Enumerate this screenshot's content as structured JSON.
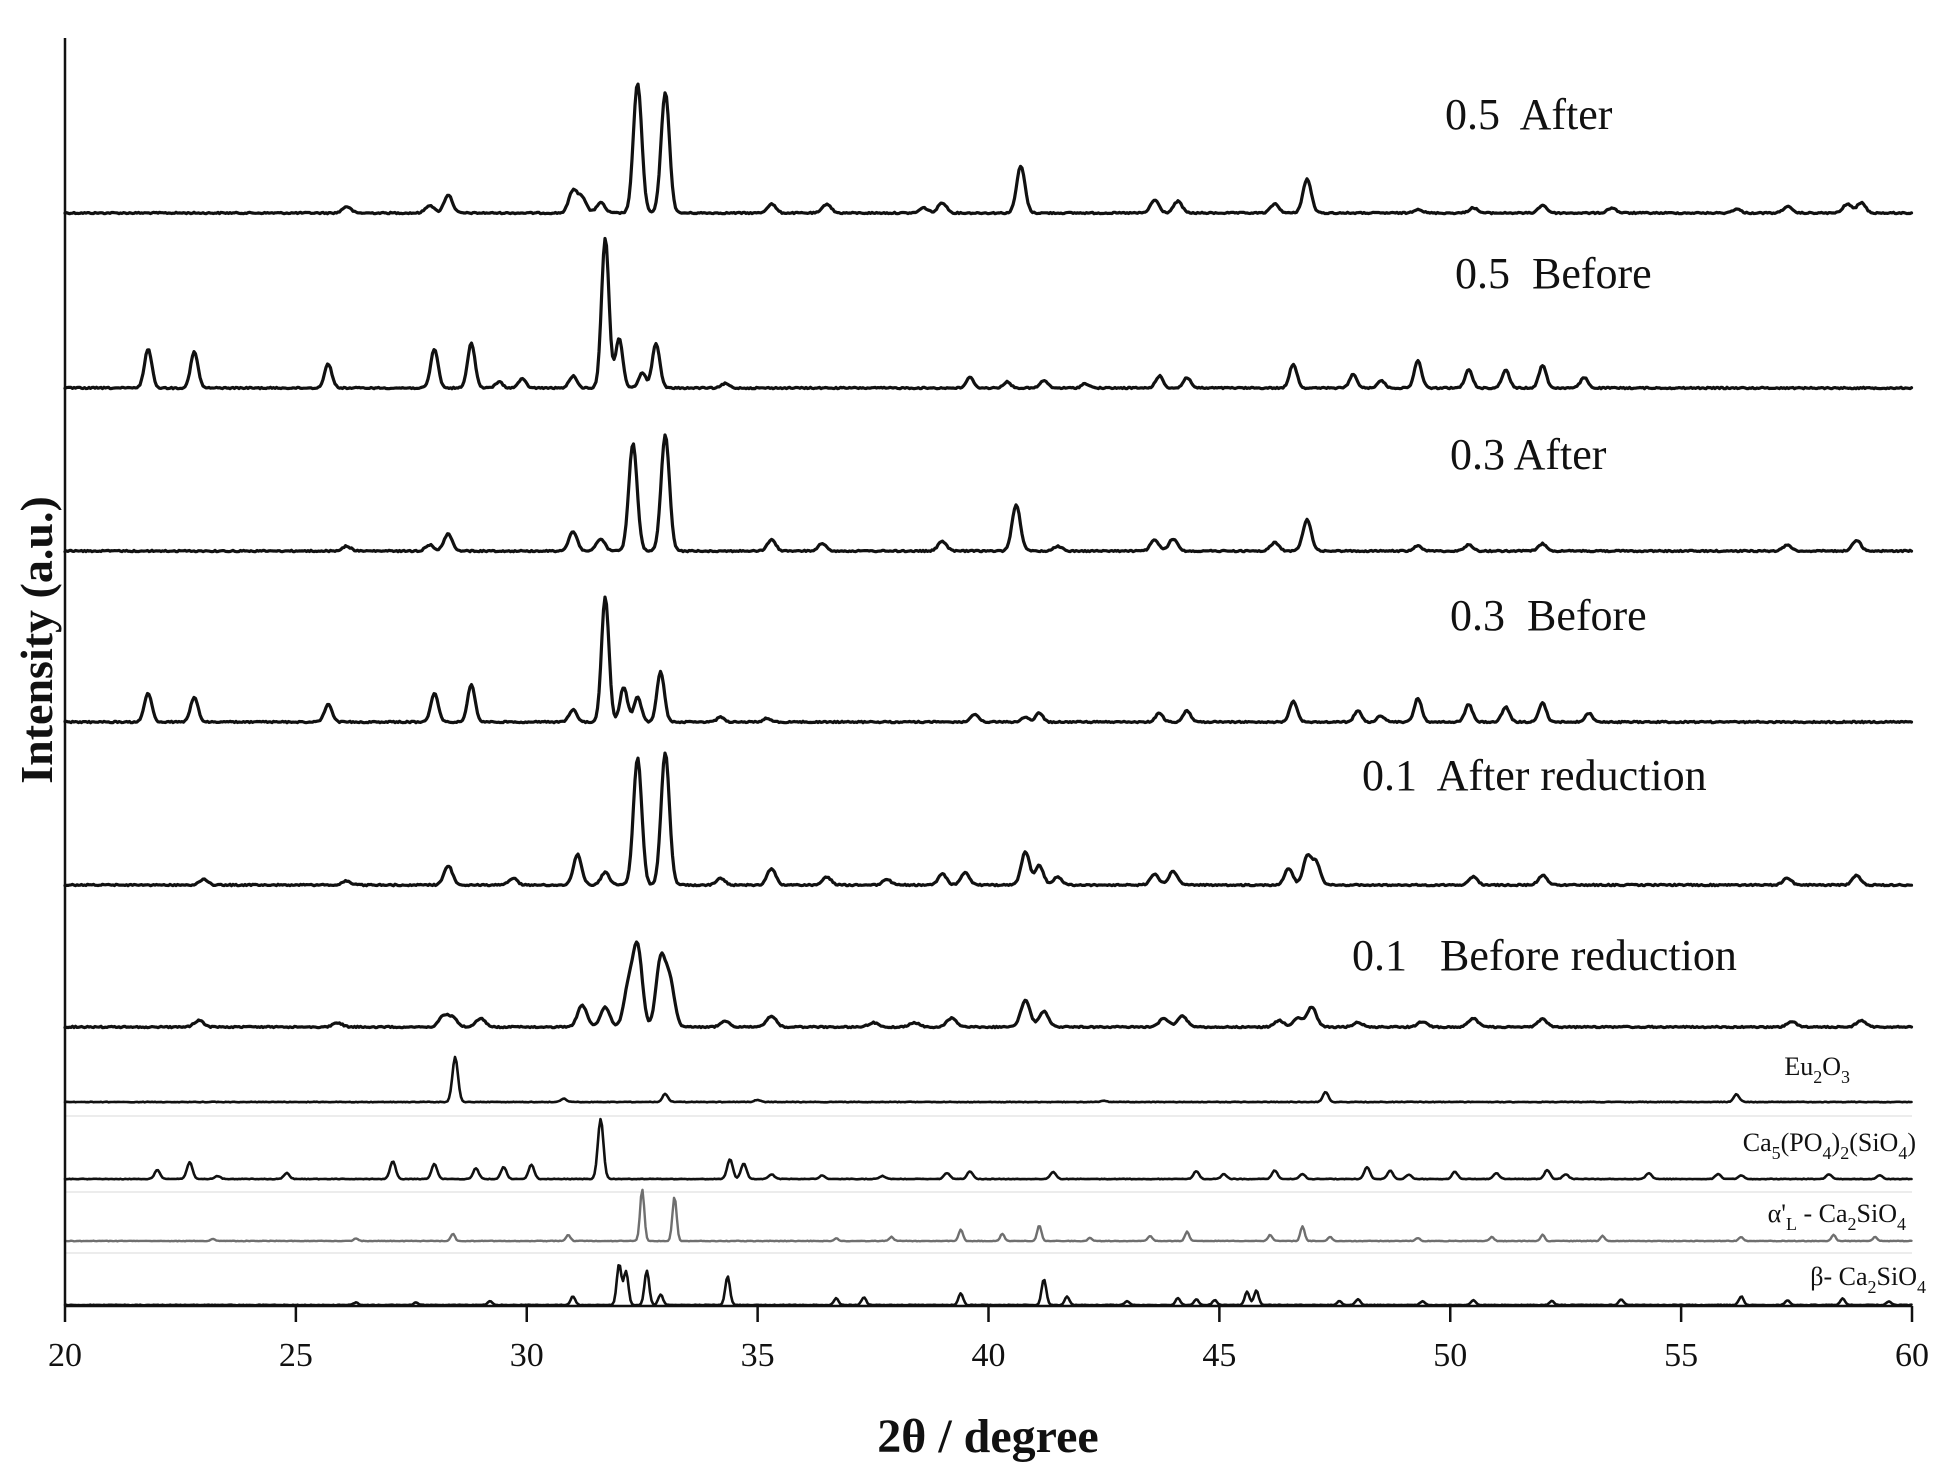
{
  "chart_data": {
    "type": "line",
    "xlabel": "2θ / degree",
    "ylabel": "Intensity (a.u.)",
    "xlim": [
      20,
      60
    ],
    "xticks": [
      "20",
      "25",
      "30",
      "35",
      "40",
      "45",
      "50",
      "55",
      "60"
    ],
    "series": [
      {
        "name": "0.5  After",
        "peaks": [
          [
            32.4,
            100
          ],
          [
            33.0,
            93
          ],
          [
            40.7,
            36
          ],
          [
            46.9,
            26
          ],
          [
            31.0,
            17
          ],
          [
            31.2,
            12
          ],
          [
            28.3,
            14
          ],
          [
            31.6,
            8
          ],
          [
            27.9,
            6
          ],
          [
            26.1,
            5
          ],
          [
            35.3,
            7
          ],
          [
            36.5,
            7
          ],
          [
            39.0,
            8
          ],
          [
            38.6,
            4
          ],
          [
            43.6,
            10
          ],
          [
            44.1,
            9
          ],
          [
            46.2,
            7
          ],
          [
            49.3,
            3
          ],
          [
            50.5,
            4
          ],
          [
            52.0,
            6
          ],
          [
            53.5,
            4
          ],
          [
            57.3,
            5
          ],
          [
            58.6,
            7
          ],
          [
            58.9,
            8
          ],
          [
            56.2,
            3
          ]
        ]
      },
      {
        "name": "0.5  Before",
        "peaks": [
          [
            31.7,
            100
          ],
          [
            32.0,
            33
          ],
          [
            32.8,
            30
          ],
          [
            32.5,
            10
          ],
          [
            21.8,
            26
          ],
          [
            22.8,
            24
          ],
          [
            25.7,
            16
          ],
          [
            28.0,
            26
          ],
          [
            28.8,
            30
          ],
          [
            29.9,
            6
          ],
          [
            31.0,
            8
          ],
          [
            29.4,
            4
          ],
          [
            34.3,
            3
          ],
          [
            39.6,
            7
          ],
          [
            41.2,
            5
          ],
          [
            43.7,
            8
          ],
          [
            44.3,
            7
          ],
          [
            46.6,
            16
          ],
          [
            47.9,
            9
          ],
          [
            48.5,
            5
          ],
          [
            49.3,
            18
          ],
          [
            50.4,
            12
          ],
          [
            51.2,
            12
          ],
          [
            52.0,
            15
          ],
          [
            52.9,
            7
          ],
          [
            40.4,
            4
          ],
          [
            42.1,
            3
          ]
        ]
      },
      {
        "name": "0.3 After",
        "peaks": [
          [
            32.3,
            88
          ],
          [
            33.0,
            95
          ],
          [
            40.6,
            38
          ],
          [
            46.9,
            26
          ],
          [
            31.0,
            16
          ],
          [
            28.3,
            14
          ],
          [
            31.6,
            10
          ],
          [
            35.3,
            9
          ],
          [
            36.4,
            6
          ],
          [
            39.0,
            8
          ],
          [
            43.6,
            9
          ],
          [
            44.0,
            10
          ],
          [
            46.2,
            7
          ],
          [
            49.3,
            4
          ],
          [
            50.4,
            5
          ],
          [
            52.0,
            6
          ],
          [
            57.3,
            5
          ],
          [
            58.8,
            9
          ],
          [
            26.1,
            4
          ],
          [
            27.9,
            5
          ],
          [
            41.5,
            4
          ]
        ]
      },
      {
        "name": "0.3  Before",
        "peaks": [
          [
            31.7,
            100
          ],
          [
            32.1,
            28
          ],
          [
            32.4,
            20
          ],
          [
            32.9,
            40
          ],
          [
            21.8,
            23
          ],
          [
            22.8,
            20
          ],
          [
            25.7,
            14
          ],
          [
            28.0,
            23
          ],
          [
            28.8,
            30
          ],
          [
            31.0,
            10
          ],
          [
            34.2,
            4
          ],
          [
            39.7,
            6
          ],
          [
            41.1,
            7
          ],
          [
            43.7,
            7
          ],
          [
            44.3,
            9
          ],
          [
            46.6,
            17
          ],
          [
            48.0,
            9
          ],
          [
            48.5,
            5
          ],
          [
            49.3,
            19
          ],
          [
            50.4,
            14
          ],
          [
            51.2,
            12
          ],
          [
            52.0,
            15
          ],
          [
            53.0,
            7
          ],
          [
            40.8,
            4
          ],
          [
            35.2,
            3
          ]
        ]
      },
      {
        "name": "0.1  After reduction",
        "peaks": [
          [
            32.4,
            92
          ],
          [
            33.0,
            96
          ],
          [
            31.1,
            22
          ],
          [
            40.8,
            24
          ],
          [
            41.1,
            14
          ],
          [
            46.9,
            20
          ],
          [
            47.1,
            16
          ],
          [
            28.3,
            14
          ],
          [
            31.7,
            9
          ],
          [
            35.3,
            12
          ],
          [
            36.5,
            6
          ],
          [
            39.0,
            8
          ],
          [
            39.5,
            9
          ],
          [
            41.5,
            6
          ],
          [
            43.6,
            8
          ],
          [
            44.0,
            10
          ],
          [
            46.5,
            12
          ],
          [
            50.5,
            6
          ],
          [
            52.0,
            7
          ],
          [
            57.3,
            5
          ],
          [
            58.8,
            7
          ],
          [
            23.0,
            4
          ],
          [
            26.1,
            3
          ],
          [
            29.7,
            5
          ],
          [
            34.2,
            5
          ],
          [
            37.8,
            4
          ]
        ]
      },
      {
        "name": "0.1   Before reduction",
        "peaks": [
          [
            32.4,
            72
          ],
          [
            32.2,
            35
          ],
          [
            32.9,
            60
          ],
          [
            33.1,
            40
          ],
          [
            31.2,
            20
          ],
          [
            31.7,
            18
          ],
          [
            40.8,
            24
          ],
          [
            41.2,
            14
          ],
          [
            47.0,
            18
          ],
          [
            28.2,
            10
          ],
          [
            28.4,
            8
          ],
          [
            29.0,
            8
          ],
          [
            35.3,
            10
          ],
          [
            39.2,
            8
          ],
          [
            43.8,
            8
          ],
          [
            44.2,
            10
          ],
          [
            46.3,
            6
          ],
          [
            49.4,
            5
          ],
          [
            50.5,
            8
          ],
          [
            52.0,
            7
          ],
          [
            57.4,
            5
          ],
          [
            58.9,
            6
          ],
          [
            22.9,
            6
          ],
          [
            25.9,
            4
          ],
          [
            34.3,
            5
          ],
          [
            37.5,
            4
          ],
          [
            38.4,
            4
          ],
          [
            46.7,
            8
          ],
          [
            48.0,
            4
          ]
        ]
      },
      {
        "name": "Eu2O3",
        "label_main": "Eu",
        "label_sub1": "2",
        "label_mid": "O",
        "label_sub2": "3",
        "peaks": [
          [
            28.45,
            100
          ],
          [
            47.3,
            22
          ],
          [
            56.2,
            17
          ],
          [
            33.0,
            18
          ],
          [
            30.8,
            8
          ],
          [
            35.0,
            5
          ],
          [
            42.5,
            3
          ]
        ]
      },
      {
        "name": "Ca5(PO4)2(SiO4)",
        "label_main": "Ca",
        "label_sub1": "5",
        "label_mid": "(PO",
        "label_sub2": "4",
        "label_mid2": ")",
        "label_sub3": "2",
        "label_mid3": "(SiO",
        "label_sub4": "4",
        "label_end": ")",
        "peaks": [
          [
            31.6,
            100
          ],
          [
            22.0,
            15
          ],
          [
            22.7,
            28
          ],
          [
            23.3,
            5
          ],
          [
            24.8,
            10
          ],
          [
            27.1,
            30
          ],
          [
            28.0,
            25
          ],
          [
            28.9,
            18
          ],
          [
            29.5,
            20
          ],
          [
            30.1,
            24
          ],
          [
            34.4,
            33
          ],
          [
            34.7,
            26
          ],
          [
            35.3,
            8
          ],
          [
            36.4,
            6
          ],
          [
            37.7,
            5
          ],
          [
            39.1,
            10
          ],
          [
            39.6,
            13
          ],
          [
            41.4,
            12
          ],
          [
            44.5,
            13
          ],
          [
            45.1,
            8
          ],
          [
            46.2,
            14
          ],
          [
            46.8,
            8
          ],
          [
            48.2,
            20
          ],
          [
            48.7,
            14
          ],
          [
            49.1,
            7
          ],
          [
            50.1,
            12
          ],
          [
            51.0,
            10
          ],
          [
            52.1,
            15
          ],
          [
            52.5,
            8
          ],
          [
            54.3,
            10
          ],
          [
            55.8,
            8
          ],
          [
            56.3,
            6
          ],
          [
            58.2,
            8
          ],
          [
            59.3,
            6
          ]
        ]
      },
      {
        "name": "α'L - Ca2SiO4",
        "label_alpha": "α'",
        "label_subL": "L",
        "label_rest": " - Ca",
        "label_sub1": "2",
        "label_end": "SiO",
        "label_sub2": "4",
        "peaks": [
          [
            32.5,
            100
          ],
          [
            33.2,
            85
          ],
          [
            28.4,
            14
          ],
          [
            30.9,
            12
          ],
          [
            37.9,
            8
          ],
          [
            39.4,
            22
          ],
          [
            40.3,
            14
          ],
          [
            41.1,
            30
          ],
          [
            43.5,
            10
          ],
          [
            44.3,
            18
          ],
          [
            46.1,
            12
          ],
          [
            46.8,
            28
          ],
          [
            47.4,
            8
          ],
          [
            49.3,
            6
          ],
          [
            50.9,
            8
          ],
          [
            52.0,
            12
          ],
          [
            53.3,
            10
          ],
          [
            56.3,
            8
          ],
          [
            58.3,
            12
          ],
          [
            59.2,
            8
          ],
          [
            26.3,
            5
          ],
          [
            23.2,
            4
          ],
          [
            42.2,
            6
          ],
          [
            36.7,
            5
          ]
        ]
      },
      {
        "name": "β- Ca2SiO4",
        "label_main": "β- Ca",
        "label_sub1": "2",
        "label_mid": "SiO",
        "label_sub2": "4",
        "peaks": [
          [
            32.0,
            85
          ],
          [
            32.15,
            70
          ],
          [
            32.6,
            72
          ],
          [
            32.9,
            22
          ],
          [
            34.35,
            60
          ],
          [
            31.0,
            18
          ],
          [
            29.2,
            8
          ],
          [
            26.3,
            5
          ],
          [
            27.6,
            5
          ],
          [
            36.7,
            14
          ],
          [
            37.3,
            16
          ],
          [
            39.4,
            24
          ],
          [
            41.2,
            54
          ],
          [
            41.7,
            18
          ],
          [
            43.0,
            8
          ],
          [
            44.1,
            14
          ],
          [
            44.5,
            12
          ],
          [
            44.9,
            10
          ],
          [
            45.6,
            28
          ],
          [
            45.8,
            30
          ],
          [
            47.6,
            8
          ],
          [
            48.0,
            12
          ],
          [
            49.4,
            8
          ],
          [
            50.5,
            10
          ],
          [
            52.2,
            8
          ],
          [
            53.7,
            12
          ],
          [
            56.3,
            18
          ],
          [
            57.3,
            10
          ],
          [
            58.5,
            14
          ],
          [
            59.5,
            8
          ]
        ]
      }
    ]
  }
}
